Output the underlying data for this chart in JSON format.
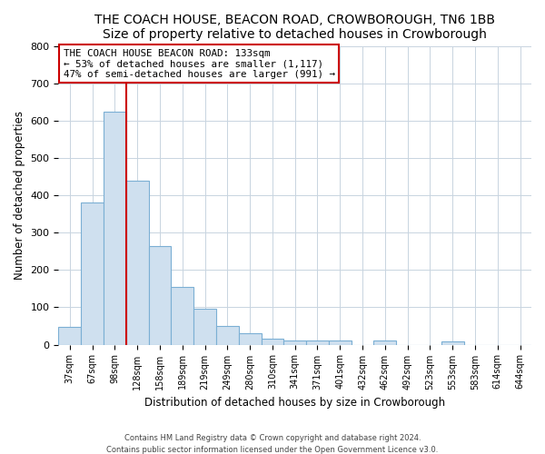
{
  "title": "THE COACH HOUSE, BEACON ROAD, CROWBOROUGH, TN6 1BB",
  "subtitle": "Size of property relative to detached houses in Crowborough",
  "xlabel": "Distribution of detached houses by size in Crowborough",
  "ylabel": "Number of detached properties",
  "bar_labels": [
    "37sqm",
    "67sqm",
    "98sqm",
    "128sqm",
    "158sqm",
    "189sqm",
    "219sqm",
    "249sqm",
    "280sqm",
    "310sqm",
    "341sqm",
    "371sqm",
    "401sqm",
    "432sqm",
    "462sqm",
    "492sqm",
    "523sqm",
    "553sqm",
    "583sqm",
    "614sqm",
    "644sqm"
  ],
  "bar_values": [
    48,
    380,
    625,
    440,
    265,
    155,
    95,
    50,
    30,
    15,
    10,
    12,
    10,
    0,
    10,
    0,
    0,
    8,
    0,
    0,
    0
  ],
  "bar_color": "#cfe0ef",
  "bar_edge_color": "#7bafd4",
  "marker_x_label": "128sqm",
  "marker_color": "#cc0000",
  "annotation_title": "THE COACH HOUSE BEACON ROAD: 133sqm",
  "annotation_line1": "← 53% of detached houses are smaller (1,117)",
  "annotation_line2": "47% of semi-detached houses are larger (991) →",
  "annotation_box_color": "#ffffff",
  "annotation_box_edge_color": "#cc0000",
  "ylim": [
    0,
    800
  ],
  "yticks": [
    0,
    100,
    200,
    300,
    400,
    500,
    600,
    700,
    800
  ],
  "footer1": "Contains HM Land Registry data © Crown copyright and database right 2024.",
  "footer2": "Contains public sector information licensed under the Open Government Licence v3.0.",
  "background_color": "#ffffff",
  "plot_background_color": "#ffffff",
  "grid_color": "#c8d4e0"
}
